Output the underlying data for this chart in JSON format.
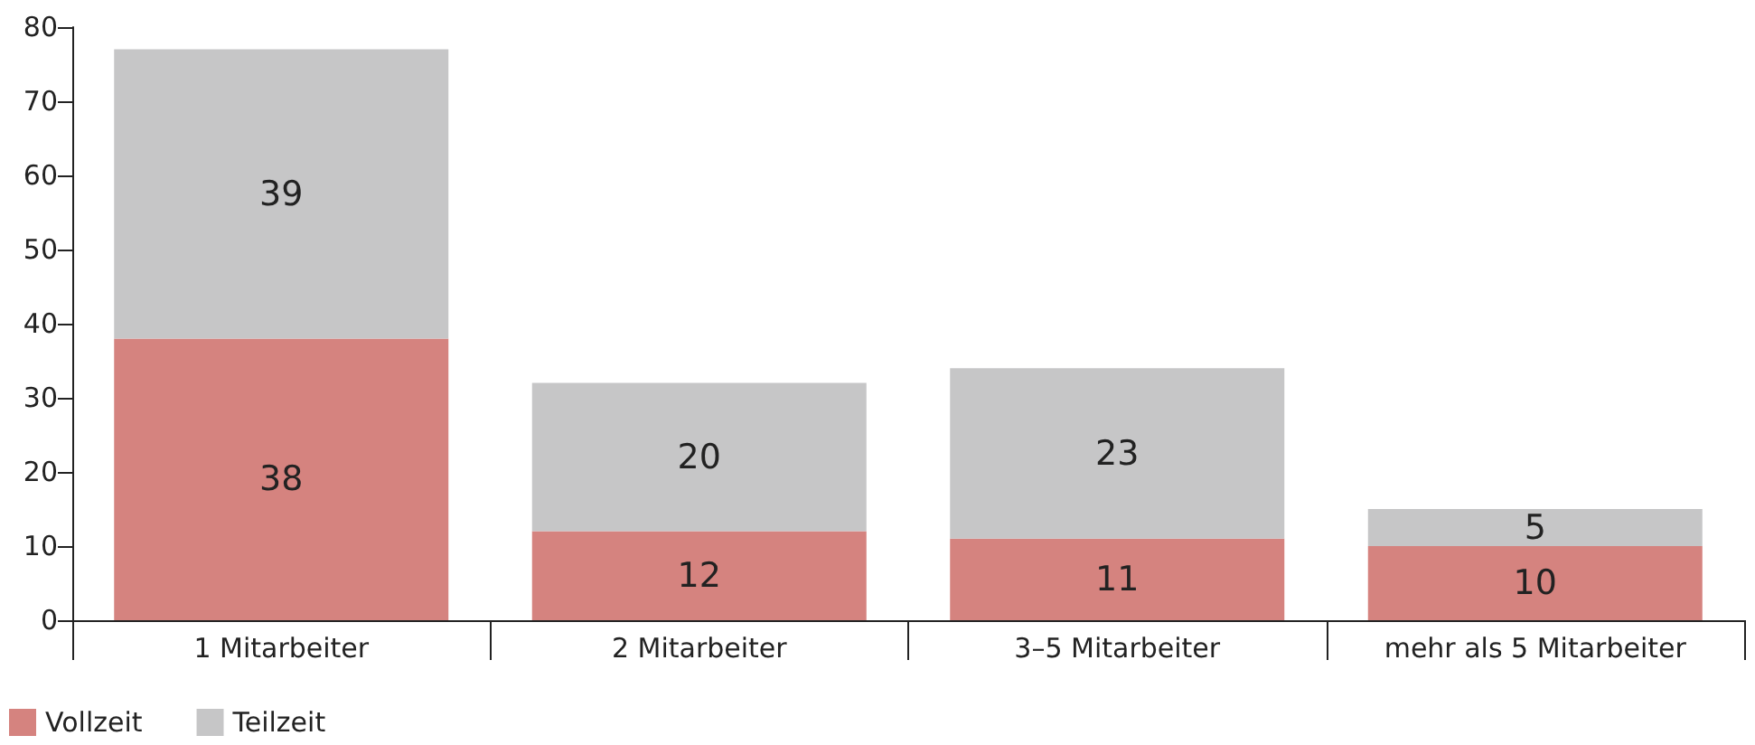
{
  "chart_data": {
    "type": "bar",
    "stacked": true,
    "categories": [
      "1 Mitarbeiter",
      "2 Mitarbeiter",
      "3–5 Mitarbeiter",
      "mehr als 5 Mitarbeiter"
    ],
    "series": [
      {
        "name": "Vollzeit",
        "color": "#d5837f",
        "values": [
          38,
          12,
          11,
          10
        ]
      },
      {
        "name": "Teilzeit",
        "color": "#c6c6c7",
        "values": [
          39,
          20,
          23,
          5
        ]
      }
    ],
    "ylim": [
      0,
      80
    ],
    "yticks": [
      0,
      10,
      20,
      30,
      40,
      50,
      60,
      70,
      80
    ],
    "grid": false,
    "legend": "bottom left",
    "data_labels": true
  }
}
